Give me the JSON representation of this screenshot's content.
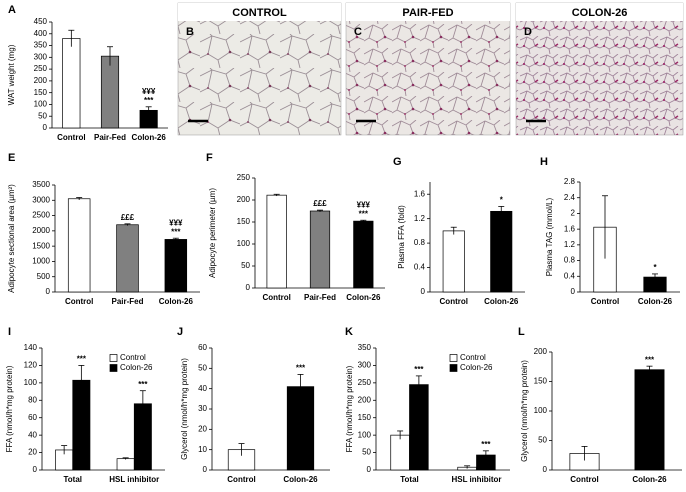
{
  "chart_data": [
    {
      "type": "bar",
      "letter": "A",
      "y_label": "WAT weight (mg)",
      "categories": [
        "Control",
        "Pair-Fed",
        "Colon-26"
      ],
      "values": [
        380,
        305,
        75
      ],
      "errors": [
        35,
        40,
        15
      ],
      "colors": [
        "#ffffff",
        "#808080",
        "#000000"
      ],
      "annotations": [
        null,
        null,
        [
          "¥¥¥",
          "***"
        ]
      ],
      "ylim": [
        0,
        450
      ],
      "yticks": [
        0,
        50,
        100,
        150,
        200,
        250,
        300,
        350,
        400,
        450
      ]
    },
    {
      "type": "image",
      "letter": "B",
      "title": "CONTROL"
    },
    {
      "type": "image",
      "letter": "C",
      "title": "PAIR-FED"
    },
    {
      "type": "image",
      "letter": "D",
      "title": "COLON-26"
    },
    {
      "type": "bar",
      "letter": "E",
      "y_label": "Adipocyte sectional area (µm²)",
      "categories": [
        "Control",
        "Pair-Fed",
        "Colon-26"
      ],
      "values": [
        3050,
        2200,
        1720
      ],
      "errors": [
        40,
        30,
        40
      ],
      "colors": [
        "#ffffff",
        "#808080",
        "#000000"
      ],
      "annotations": [
        null,
        [
          "£££"
        ],
        [
          "¥¥¥",
          "***"
        ]
      ],
      "ylim": [
        0,
        3500
      ],
      "yticks": [
        0,
        500,
        1000,
        1500,
        2000,
        2500,
        3000,
        3500
      ]
    },
    {
      "type": "bar",
      "letter": "F",
      "y_label": "Adipocyte perimeter (µm)",
      "categories": [
        "Control",
        "Pair-Fed",
        "Colon-26"
      ],
      "values": [
        211,
        175,
        152
      ],
      "errors": [
        2,
        2,
        2
      ],
      "colors": [
        "#ffffff",
        "#808080",
        "#000000"
      ],
      "annotations": [
        null,
        [
          "£££"
        ],
        [
          "¥¥¥",
          "***"
        ]
      ],
      "ylim": [
        0,
        250
      ],
      "yticks": [
        0,
        50,
        100,
        150,
        200,
        250
      ]
    },
    {
      "type": "bar",
      "letter": "G",
      "y_label": "Plasma FFA (fold)",
      "categories": [
        "Control",
        "Colon-26"
      ],
      "values": [
        1.0,
        1.32
      ],
      "errors": [
        0.06,
        0.08
      ],
      "colors": [
        "#ffffff",
        "#000000"
      ],
      "annotations": [
        null,
        [
          "*"
        ]
      ],
      "ylim": [
        0,
        1.8
      ],
      "yticks": [
        0,
        0.4,
        0.8,
        1.2,
        1.6
      ]
    },
    {
      "type": "bar",
      "letter": "H",
      "y_label": "Plasma TAG (mmol/L)",
      "categories": [
        "Control",
        "Colon-26"
      ],
      "values": [
        1.65,
        0.38
      ],
      "errors": [
        0.8,
        0.08
      ],
      "colors": [
        "#ffffff",
        "#000000"
      ],
      "annotations": [
        null,
        [
          "*"
        ]
      ],
      "ylim": [
        0,
        2.8
      ],
      "yticks": [
        0,
        0.4,
        0.8,
        1.2,
        1.6,
        2,
        2.4,
        2.8
      ]
    },
    {
      "type": "bar",
      "letter": "I",
      "y_label": "FFA (nmol/h*mg protein)",
      "categories": [
        "Total",
        "HSL inhibitor"
      ],
      "series": [
        {
          "name": "Control",
          "color": "#ffffff",
          "values": [
            23,
            13
          ],
          "errors": [
            5,
            1
          ]
        },
        {
          "name": "Colon-26",
          "color": "#000000",
          "values": [
            103,
            76
          ],
          "errors": [
            17,
            15
          ],
          "annotations": [
            "***",
            "***"
          ]
        }
      ],
      "ylim": [
        0,
        140
      ],
      "yticks": [
        0,
        20,
        40,
        60,
        80,
        100,
        120,
        140
      ]
    },
    {
      "type": "bar",
      "letter": "J",
      "y_label": "Glycerol (nmol/h*mg protein)",
      "categories": [
        "Control",
        "Colon-26"
      ],
      "values": [
        10,
        41
      ],
      "errors": [
        3,
        6
      ],
      "colors": [
        "#ffffff",
        "#000000"
      ],
      "annotations": [
        null,
        [
          "***"
        ]
      ],
      "ylim": [
        0,
        60
      ],
      "yticks": [
        0,
        10,
        20,
        30,
        40,
        50,
        60
      ]
    },
    {
      "type": "bar",
      "letter": "K",
      "y_label": "FFA (nmol/h*mg protein)",
      "categories": [
        "Total",
        "HSL inhibitor"
      ],
      "series": [
        {
          "name": "Control",
          "color": "#ffffff",
          "values": [
            100,
            8
          ],
          "errors": [
            12,
            4
          ]
        },
        {
          "name": "Colon-26",
          "color": "#000000",
          "values": [
            245,
            43
          ],
          "errors": [
            25,
            12
          ],
          "annotations": [
            "***",
            "***"
          ]
        }
      ],
      "ylim": [
        0,
        350
      ],
      "yticks": [
        0,
        50,
        100,
        150,
        200,
        250,
        300,
        350
      ]
    },
    {
      "type": "bar",
      "letter": "L",
      "y_label": "Glycerol (nmol/h*mg protein)",
      "categories": [
        "Control",
        "Colon-26"
      ],
      "values": [
        28,
        170
      ],
      "errors": [
        12,
        6
      ],
      "colors": [
        "#ffffff",
        "#000000"
      ],
      "annotations": [
        null,
        [
          "***"
        ]
      ],
      "ylim": [
        0,
        200
      ],
      "yticks": [
        0,
        50,
        100,
        150,
        200
      ]
    }
  ]
}
